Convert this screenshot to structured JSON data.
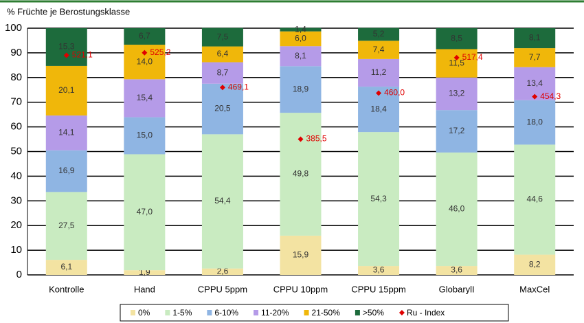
{
  "chart_data": {
    "type": "bar",
    "stacked": true,
    "subtitle": "% Früchte je Berostungsklasse",
    "categories": [
      "Kontrolle",
      "Hand",
      "CPPU 5ppm",
      "CPPU 10ppm",
      "CPPU 15ppm",
      "GlobarylI",
      "MaxCel"
    ],
    "ylim": [
      0,
      100
    ],
    "yticks": [
      0,
      10,
      20,
      30,
      40,
      50,
      60,
      70,
      80,
      90,
      100
    ],
    "grid": true,
    "y2lim": [
      166,
      565
    ],
    "series": [
      {
        "name": "0%",
        "color": "#f3e3a2",
        "values": [
          6.1,
          1.9,
          2.6,
          15.9,
          3.6,
          3.6,
          8.2
        ],
        "value_labels": [
          "6,1",
          "1,9",
          "2,6",
          "15,9",
          "3,6",
          "3,6",
          "8,2"
        ]
      },
      {
        "name": "1-5%",
        "color": "#c9ebc1",
        "values": [
          27.5,
          47.0,
          54.4,
          49.8,
          54.3,
          46.0,
          44.6
        ],
        "value_labels": [
          "27,5",
          "47,0",
          "54,4",
          "49,8",
          "54,3",
          "46,0",
          "44,6"
        ]
      },
      {
        "name": "6-10%",
        "color": "#8fb5e3",
        "values": [
          16.9,
          15.0,
          20.5,
          18.9,
          18.4,
          17.2,
          18.0
        ],
        "value_labels": [
          "16,9",
          "15,0",
          "20,5",
          "18,9",
          "18,4",
          "17,2",
          "18,0"
        ]
      },
      {
        "name": "11-20%",
        "color": "#b59be8",
        "values": [
          14.1,
          15.4,
          8.7,
          8.1,
          11.2,
          13.2,
          13.4
        ],
        "value_labels": [
          "14,1",
          "15,4",
          "8,7",
          "8,1",
          "11,2",
          "13,2",
          "13,4"
        ]
      },
      {
        "name": "21-50%",
        "color": "#f0b70a",
        "values": [
          20.1,
          14.0,
          6.4,
          6.0,
          7.4,
          11.5,
          7.7
        ],
        "value_labels": [
          "20,1",
          "14,0",
          "6,4",
          "6,0",
          "7,4",
          "11,5",
          "7,7"
        ]
      },
      {
        "name": ">50%",
        "color": "#1d6b3c",
        "values": [
          15.3,
          6.7,
          7.5,
          1.4,
          5.2,
          8.5,
          8.1
        ],
        "value_labels": [
          "15,3",
          "6,7",
          "7,5",
          "1,4",
          "5,2",
          "8,5",
          "8,1"
        ]
      },
      {
        "name": "Ru - Index",
        "type": "scatter",
        "axis": "y2",
        "color": "#e00000",
        "values": [
          521.1,
          525.2,
          469.1,
          385.5,
          460.0,
          517.4,
          454.3
        ],
        "value_labels": [
          "521,1",
          "525,2",
          "469,1",
          "385,5",
          "460,0",
          "517,4",
          "454,3"
        ]
      }
    ]
  }
}
